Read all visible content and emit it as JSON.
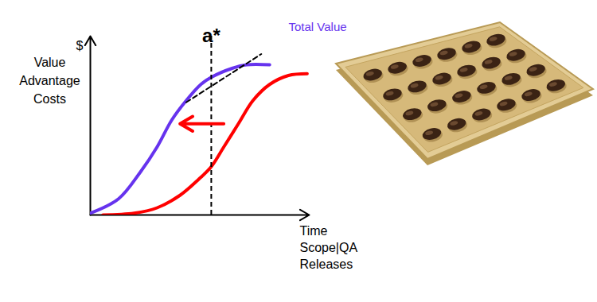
{
  "chart_data": {
    "type": "line",
    "y_label": {
      "symbol": "$",
      "lines": [
        "Value",
        "Advantage",
        "Costs"
      ]
    },
    "x_label": [
      "Time",
      "Scope|QA",
      "Releases"
    ],
    "xlim": [
      0,
      105
    ],
    "ylim": [
      0,
      100
    ],
    "tick_labels": false,
    "grid": false,
    "series": [
      {
        "name": "Total Value",
        "color": "#6633ee",
        "x": [
          0,
          13.5,
          24,
          32,
          39,
          46,
          53,
          58,
          68,
          75,
          86
        ],
        "values": [
          1,
          9,
          24,
          38,
          53,
          64,
          73,
          77,
          82,
          84,
          84
        ]
      },
      {
        "color": "#ff0000",
        "x": [
          6,
          21,
          32,
          43,
          52,
          58,
          64,
          71,
          78,
          86,
          95,
          104
        ],
        "values": [
          0,
          1,
          4,
          11,
          20,
          27,
          38,
          51,
          64,
          73,
          78,
          79
        ]
      }
    ],
    "marker_line": {
      "x": 58,
      "label": "a*"
    },
    "tangent": {
      "x": [
        46,
        82
      ],
      "y": [
        63,
        90
      ]
    },
    "shift_arrow": {
      "x": [
        64,
        43
      ],
      "y": [
        51,
        51
      ],
      "color": "#ff0000"
    }
  }
}
